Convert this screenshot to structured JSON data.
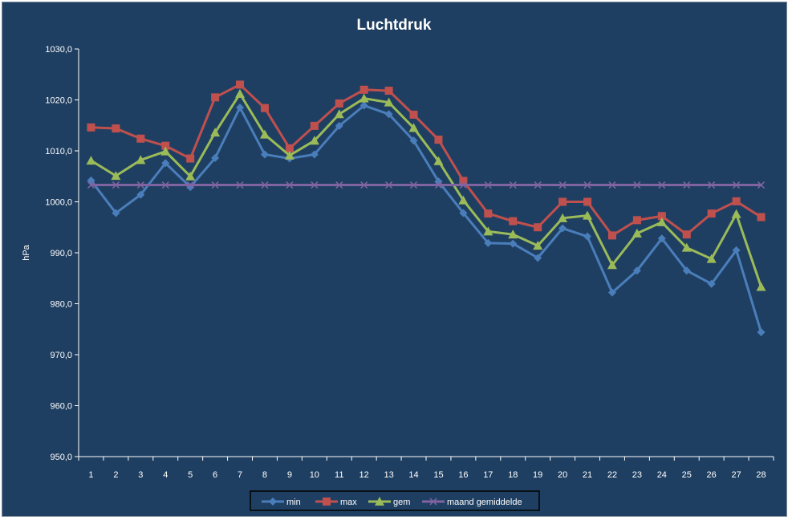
{
  "chart_data": {
    "type": "line",
    "title": "Luchtdruk",
    "xlabel": "",
    "ylabel": "hPa",
    "ylim": [
      950,
      1030
    ],
    "ytick_step": 10,
    "ytick_labels": [
      "950,0",
      "960,0",
      "970,0",
      "980,0",
      "990,0",
      "1000,0",
      "1010,0",
      "1020,0",
      "1030,0"
    ],
    "grid": false,
    "legend_position": "bottom",
    "categories": [
      "1",
      "2",
      "3",
      "4",
      "5",
      "6",
      "7",
      "8",
      "9",
      "10",
      "11",
      "12",
      "13",
      "14",
      "15",
      "16",
      "17",
      "18",
      "19",
      "20",
      "21",
      "22",
      "23",
      "24",
      "25",
      "26",
      "27",
      "28"
    ],
    "series": [
      {
        "name": "min",
        "color": "#4a7ebb",
        "marker": "diamond",
        "values": [
          1004.2,
          997.8,
          1001.4,
          1007.6,
          1002.9,
          1008.6,
          1018.5,
          1009.3,
          1008.5,
          1009.3,
          1014.9,
          1018.9,
          1017.2,
          1012.0,
          1004.0,
          997.8,
          991.9,
          991.8,
          989.0,
          994.8,
          993.2,
          982.2,
          986.5,
          992.8,
          986.5,
          983.9,
          990.5,
          974.4
        ]
      },
      {
        "name": "max",
        "color": "#c0504d",
        "marker": "square",
        "values": [
          1014.6,
          1014.4,
          1012.4,
          1011.0,
          1008.5,
          1020.5,
          1023.0,
          1018.4,
          1010.5,
          1014.9,
          1019.3,
          1022.0,
          1021.8,
          1017.1,
          1012.2,
          1004.1,
          997.7,
          996.2,
          995.0,
          1000.0,
          1000.0,
          993.4,
          996.4,
          997.2,
          993.6,
          997.7,
          1000.1,
          997.0
        ]
      },
      {
        "name": "gem",
        "color": "#9bbb59",
        "marker": "triangle",
        "values": [
          1008.1,
          1005.1,
          1008.2,
          1009.9,
          1005.0,
          1013.6,
          1021.2,
          1013.2,
          1009.1,
          1012.0,
          1017.2,
          1020.3,
          1019.5,
          1014.5,
          1008.0,
          1000.3,
          994.2,
          993.6,
          991.4,
          996.8,
          997.3,
          987.6,
          993.8,
          996.0,
          991.0,
          988.8,
          997.6,
          983.3
        ]
      },
      {
        "name": "maand gemiddelde",
        "color": "#8064a2",
        "marker": "x",
        "values": [
          1003.3,
          1003.3,
          1003.3,
          1003.3,
          1003.3,
          1003.3,
          1003.3,
          1003.3,
          1003.3,
          1003.3,
          1003.3,
          1003.3,
          1003.3,
          1003.3,
          1003.3,
          1003.3,
          1003.3,
          1003.3,
          1003.3,
          1003.3,
          1003.3,
          1003.3,
          1003.3,
          1003.3,
          1003.3,
          1003.3,
          1003.3,
          1003.3
        ]
      }
    ]
  }
}
